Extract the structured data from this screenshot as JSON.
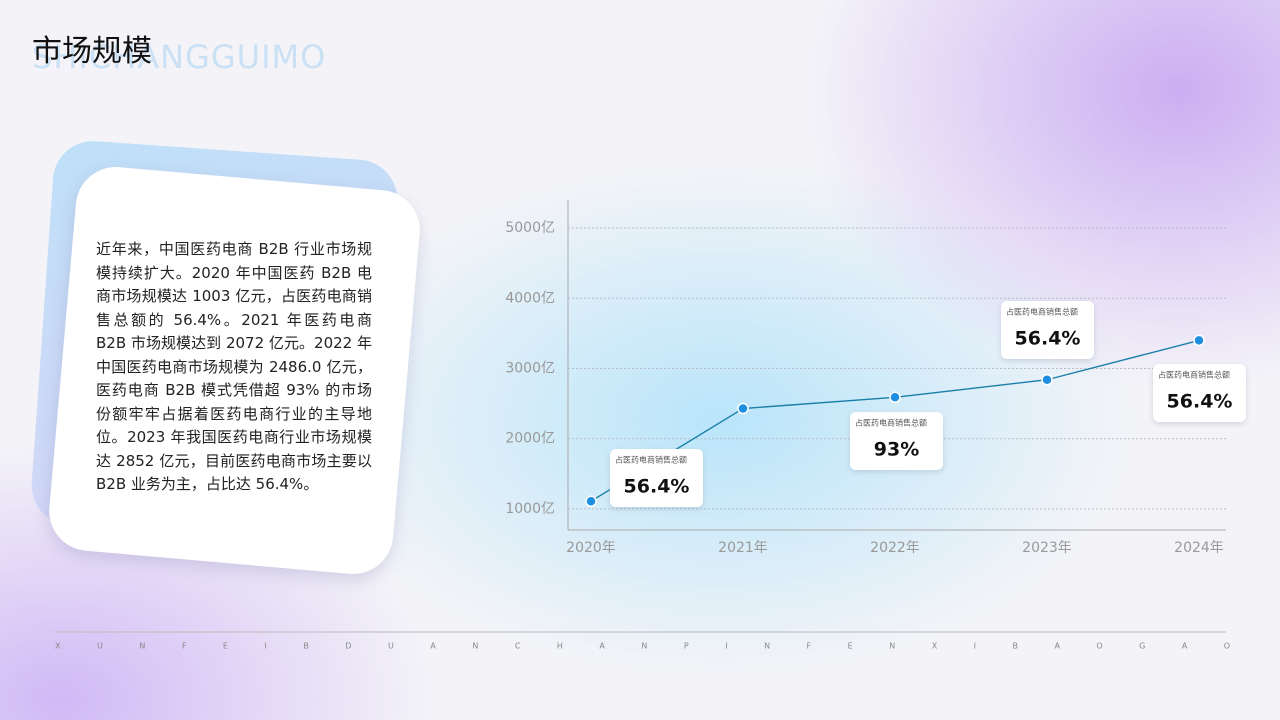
{
  "header": {
    "title": "市场规模",
    "watermark": "SHICHANGGUIMO"
  },
  "body": {
    "paragraph": "近年来，中国医药电商 B2B 行业市场规模持续扩大。2020 年中国医药 B2B 电商市场规模达 1003 亿元，占医药电商销售总额的 56.4%。2021 年医药电商 B2B 市场规模达到 2072 亿元。2022 年中国医药电商市场规模为 2486.0 亿元，医药电商 B2B 模式凭借超 93% 的市场份额牢牢占据着医药电商行业的主导地位。2023 年我国医药电商行业市场规模达 2852 亿元，目前医药电商市场主要以 B2B 业务为主，占比达 56.4%。"
  },
  "footer": {
    "letters": "XUNFEIBDUANCHANPINFENXIBAOGAO"
  },
  "chart_data": {
    "type": "line",
    "categories": [
      "2020年",
      "2021年",
      "2022年",
      "2023年",
      "2024年"
    ],
    "values": [
      1110,
      2430,
      2590,
      2840,
      3400
    ],
    "color": "#1a7fa8",
    "ylim": [
      700,
      5400
    ],
    "yticks": [
      {
        "value": 1000,
        "label": "1000亿"
      },
      {
        "value": 2000,
        "label": "2000亿"
      },
      {
        "value": 3000,
        "label": "3000亿"
      },
      {
        "value": 4000,
        "label": "4000亿"
      },
      {
        "value": 5000,
        "label": "5000亿"
      }
    ],
    "grid": true,
    "annotations": [
      {
        "label": "占医药电商销售总额",
        "text": "56.4%"
      },
      {
        "label": "占医药电商销售总额",
        "text": "93%"
      },
      {
        "label": "占医药电商销售总额",
        "text": "56.4%"
      },
      {
        "label": "占医药电商销售总额",
        "text": "56.4%"
      }
    ]
  }
}
